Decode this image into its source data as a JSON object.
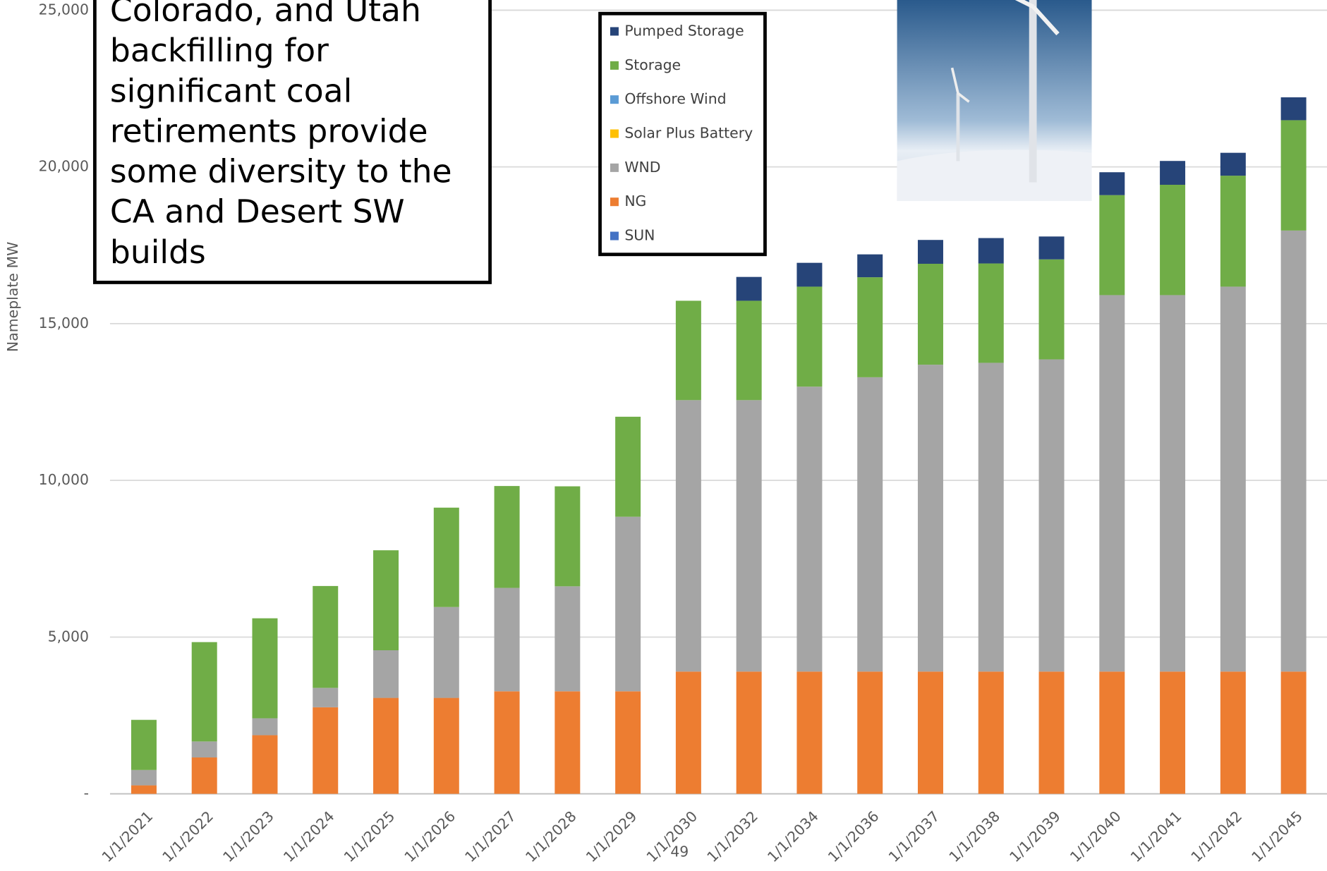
{
  "chart_data": {
    "type": "bar",
    "stacked": true,
    "y_label": "Nameplate MW",
    "categories": [
      "1/1/2021",
      "1/1/2022",
      "1/1/2023",
      "1/1/2024",
      "1/1/2025",
      "1/1/2026",
      "1/1/2027",
      "1/1/2028",
      "1/1/2029",
      "1/1/2030",
      "1/1/2032",
      "1/1/2034",
      "1/1/2036",
      "1/1/2037",
      "1/1/2038",
      "1/1/2039",
      "1/1/2040",
      "1/1/2041",
      "1/1/2042",
      "1/1/2045"
    ],
    "series": [
      {
        "name": "SUN",
        "color": "#4472c4",
        "values": [
          0,
          0,
          0,
          0,
          0,
          0,
          0,
          0,
          0,
          0,
          0,
          0,
          0,
          0,
          0,
          0,
          0,
          0,
          0,
          0
        ]
      },
      {
        "name": "NG",
        "color": "#ed7d31",
        "values": [
          270,
          1160,
          1870,
          2760,
          3060,
          3060,
          3270,
          3270,
          3270,
          3900,
          3900,
          3900,
          3900,
          3900,
          3900,
          3900,
          3900,
          3900,
          3900,
          3900
        ]
      },
      {
        "name": "WND",
        "color": "#a5a5a5",
        "values": [
          490,
          510,
          540,
          620,
          1520,
          2900,
          3300,
          3350,
          5570,
          8660,
          8660,
          9090,
          9390,
          9790,
          9850,
          9960,
          12010,
          12010,
          12280,
          14070
        ]
      },
      {
        "name": "Solar Plus Battery",
        "color": "#ffc000",
        "values": [
          0,
          0,
          0,
          0,
          0,
          0,
          0,
          0,
          0,
          0,
          0,
          0,
          0,
          0,
          0,
          0,
          0,
          0,
          0,
          0
        ]
      },
      {
        "name": "Offshore Wind",
        "color": "#5b9bd5",
        "values": [
          0,
          0,
          0,
          0,
          0,
          0,
          0,
          0,
          0,
          0,
          0,
          0,
          0,
          0,
          0,
          0,
          0,
          0,
          0,
          0
        ]
      },
      {
        "name": "Storage",
        "color": "#70ad47",
        "values": [
          1600,
          3170,
          3190,
          3250,
          3190,
          3170,
          3250,
          3190,
          3190,
          3170,
          3170,
          3190,
          3190,
          3220,
          3170,
          3190,
          3190,
          3520,
          3540,
          3520
        ]
      },
      {
        "name": "Pumped Storage",
        "color": "#264478",
        "values": [
          0,
          0,
          0,
          0,
          0,
          0,
          0,
          0,
          0,
          0,
          760,
          760,
          730,
          760,
          810,
          730,
          730,
          760,
          730,
          730
        ]
      }
    ],
    "ylim": [
      0,
      25000
    ],
    "yticks": [
      {
        "value": 0,
        "label": "-"
      },
      {
        "value": 5000,
        "label": "5,000"
      },
      {
        "value": 10000,
        "label": "10,000"
      },
      {
        "value": 15000,
        "label": "15,000"
      },
      {
        "value": 20000,
        "label": "20,000"
      },
      {
        "value": 25000,
        "label": "25,000"
      }
    ],
    "grid": true,
    "legend_position": "top",
    "annotation_lines": [
      "Colorado, and Utah",
      "backfilling for",
      "significant coal",
      "retirements provide",
      "some diversity to the",
      "CA and Desert SW",
      "builds"
    ]
  },
  "page_number": "49"
}
